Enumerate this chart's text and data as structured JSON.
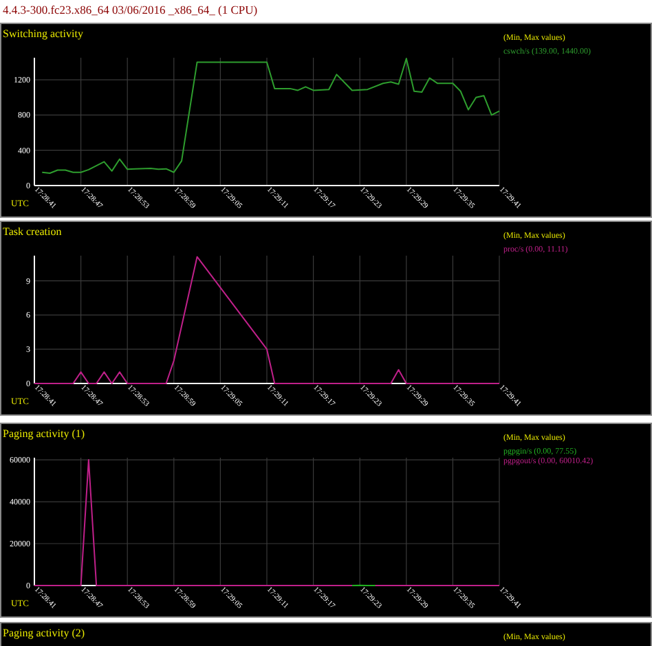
{
  "chart_data": [
    {
      "type": "line",
      "title": "Switching activity",
      "annotations": [
        "4.4.3-300.fc23.x86_64 03/06/2016 _x86_64_ (1 CPU)"
      ],
      "xlabel": "UTC",
      "legend_title": "(Min, Max values)",
      "legend": "right",
      "grid": true,
      "xlim": [
        "2016-03-06T17:28:41",
        "2016-03-06T17:29:41"
      ],
      "xticks": [
        {
          "value": "2016-03-06T17:28:41",
          "label": "17:28:41"
        },
        {
          "value": "2016-03-06T17:28:47",
          "label": "17:28:47"
        },
        {
          "value": "2016-03-06T17:28:53",
          "label": "17:28:53"
        },
        {
          "value": "2016-03-06T17:28:59",
          "label": "17:28:59"
        },
        {
          "value": "2016-03-06T17:29:05",
          "label": "17:29:05"
        },
        {
          "value": "2016-03-06T17:29:11",
          "label": "17:29:11"
        },
        {
          "value": "2016-03-06T17:29:17",
          "label": "17:29:17"
        },
        {
          "value": "2016-03-06T17:29:23",
          "label": "17:29:23"
        },
        {
          "value": "2016-03-06T17:29:29",
          "label": "17:29:29"
        },
        {
          "value": "2016-03-06T17:29:35",
          "label": "17:29:35"
        },
        {
          "value": "2016-03-06T17:29:41",
          "label": "17:29:41"
        }
      ],
      "ylim": [
        0,
        1450
      ],
      "yticks": [
        0,
        400,
        800,
        1200
      ],
      "series": [
        {
          "name": "cswch/s (139.00, 1440.00)",
          "color": "#2e9e2e",
          "x": [
            "2016-03-06T17:28:42",
            "2016-03-06T17:28:43",
            "2016-03-06T17:28:44",
            "2016-03-06T17:28:45",
            "2016-03-06T17:28:46",
            "2016-03-06T17:28:47",
            "2016-03-06T17:28:48",
            "2016-03-06T17:28:50",
            "2016-03-06T17:28:51",
            "2016-03-06T17:28:52",
            "2016-03-06T17:28:53",
            "2016-03-06T17:28:54",
            "2016-03-06T17:28:56",
            "2016-03-06T17:28:57",
            "2016-03-06T17:28:58",
            "2016-03-06T17:28:59",
            "2016-03-06T17:29:00",
            "2016-03-06T17:29:02",
            "2016-03-06T17:29:11",
            "2016-03-06T17:29:12",
            "2016-03-06T17:29:14",
            "2016-03-06T17:29:15",
            "2016-03-06T17:29:16",
            "2016-03-06T17:29:17",
            "2016-03-06T17:29:19",
            "2016-03-06T17:29:20",
            "2016-03-06T17:29:22",
            "2016-03-06T17:29:24",
            "2016-03-06T17:29:26",
            "2016-03-06T17:29:27",
            "2016-03-06T17:29:28",
            "2016-03-06T17:29:29",
            "2016-03-06T17:29:30",
            "2016-03-06T17:29:31",
            "2016-03-06T17:29:32",
            "2016-03-06T17:29:33",
            "2016-03-06T17:29:35",
            "2016-03-06T17:29:36",
            "2016-03-06T17:29:37",
            "2016-03-06T17:29:38",
            "2016-03-06T17:29:39",
            "2016-03-06T17:29:40",
            "2016-03-06T17:29:41"
          ],
          "values": [
            150,
            140,
            175,
            175,
            150,
            150,
            180,
            270,
            165,
            300,
            185,
            190,
            195,
            185,
            190,
            150,
            280,
            1400,
            1400,
            1100,
            1100,
            1080,
            1120,
            1080,
            1090,
            1260,
            1080,
            1090,
            1160,
            1175,
            1150,
            1440,
            1070,
            1060,
            1220,
            1160,
            1160,
            1070,
            860,
            1000,
            1020,
            800,
            845
          ]
        }
      ]
    },
    {
      "type": "line",
      "title": "Task creation",
      "xlabel": "UTC",
      "legend_title": "(Min, Max values)",
      "legend": "right",
      "grid": true,
      "xlim": [
        "2016-03-06T17:28:41",
        "2016-03-06T17:29:41"
      ],
      "xticks": [
        {
          "value": "2016-03-06T17:28:41",
          "label": "17:28:41"
        },
        {
          "value": "2016-03-06T17:28:47",
          "label": "17:28:47"
        },
        {
          "value": "2016-03-06T17:28:53",
          "label": "17:28:53"
        },
        {
          "value": "2016-03-06T17:28:59",
          "label": "17:28:59"
        },
        {
          "value": "2016-03-06T17:29:05",
          "label": "17:29:05"
        },
        {
          "value": "2016-03-06T17:29:11",
          "label": "17:29:11"
        },
        {
          "value": "2016-03-06T17:29:17",
          "label": "17:29:17"
        },
        {
          "value": "2016-03-06T17:29:23",
          "label": "17:29:23"
        },
        {
          "value": "2016-03-06T17:29:29",
          "label": "17:29:29"
        },
        {
          "value": "2016-03-06T17:29:35",
          "label": "17:29:35"
        },
        {
          "value": "2016-03-06T17:29:41",
          "label": "17:29:41"
        }
      ],
      "ylim": [
        0,
        11.2
      ],
      "yticks": [
        0,
        3,
        6,
        9
      ],
      "series": [
        {
          "name": "proc/s (0.00, 11.11)",
          "color": "#c0208a",
          "x": [
            "2016-03-06T17:28:41",
            "2016-03-06T17:28:46",
            "2016-03-06T17:28:47",
            "2016-03-06T17:28:48",
            "2016-03-06T17:28:49",
            "2016-03-06T17:28:50",
            "2016-03-06T17:28:51",
            "2016-03-06T17:28:52",
            "2016-03-06T17:28:53",
            "2016-03-06T17:28:58",
            "2016-03-06T17:28:59",
            "2016-03-06T17:29:02",
            "2016-03-06T17:29:11",
            "2016-03-06T17:29:12",
            "2016-03-06T17:29:27",
            "2016-03-06T17:29:28",
            "2016-03-06T17:29:29",
            "2016-03-06T17:29:41"
          ],
          "values": [
            0,
            0,
            1,
            0,
            0,
            1,
            0,
            1,
            0,
            0,
            2,
            11.1,
            3,
            0,
            0,
            1.2,
            0,
            0
          ]
        }
      ]
    },
    {
      "type": "line",
      "title": "Paging activity (1)",
      "xlabel": "UTC",
      "legend_title": "(Min, Max values)",
      "legend": "right",
      "grid": true,
      "xlim": [
        "2016-03-06T17:28:41",
        "2016-03-06T17:29:41"
      ],
      "xticks": [
        {
          "value": "2016-03-06T17:28:41",
          "label": "17:28:41"
        },
        {
          "value": "2016-03-06T17:28:47",
          "label": "17:28:47"
        },
        {
          "value": "2016-03-06T17:28:53",
          "label": "17:28:53"
        },
        {
          "value": "2016-03-06T17:28:59",
          "label": "17:28:59"
        },
        {
          "value": "2016-03-06T17:29:05",
          "label": "17:29:05"
        },
        {
          "value": "2016-03-06T17:29:11",
          "label": "17:29:11"
        },
        {
          "value": "2016-03-06T17:29:17",
          "label": "17:29:17"
        },
        {
          "value": "2016-03-06T17:29:23",
          "label": "17:29:23"
        },
        {
          "value": "2016-03-06T17:29:29",
          "label": "17:29:29"
        },
        {
          "value": "2016-03-06T17:29:35",
          "label": "17:29:35"
        },
        {
          "value": "2016-03-06T17:29:41",
          "label": "17:29:41"
        }
      ],
      "ylim": [
        0,
        61000
      ],
      "yticks": [
        0,
        20000,
        40000,
        60000
      ],
      "series": [
        {
          "name": "pgpgin/s (0.00, 77.55)",
          "color": "#22b022",
          "x": [
            "2016-03-06T17:29:22",
            "2016-03-06T17:29:23",
            "2016-03-06T17:29:24",
            "2016-03-06T17:29:25"
          ],
          "values": [
            0,
            78,
            40,
            0
          ]
        },
        {
          "name": "pgpgout/s (0.00, 60010.42)",
          "color": "#c0208a",
          "x": [
            "2016-03-06T17:28:41",
            "2016-03-06T17:28:47",
            "2016-03-06T17:28:48",
            "2016-03-06T17:28:49",
            "2016-03-06T17:29:41"
          ],
          "values": [
            0,
            0,
            60010,
            0,
            0
          ]
        }
      ]
    },
    {
      "type": "other",
      "title": "Paging activity (2)",
      "legend_title": "(Min, Max values)"
    }
  ]
}
